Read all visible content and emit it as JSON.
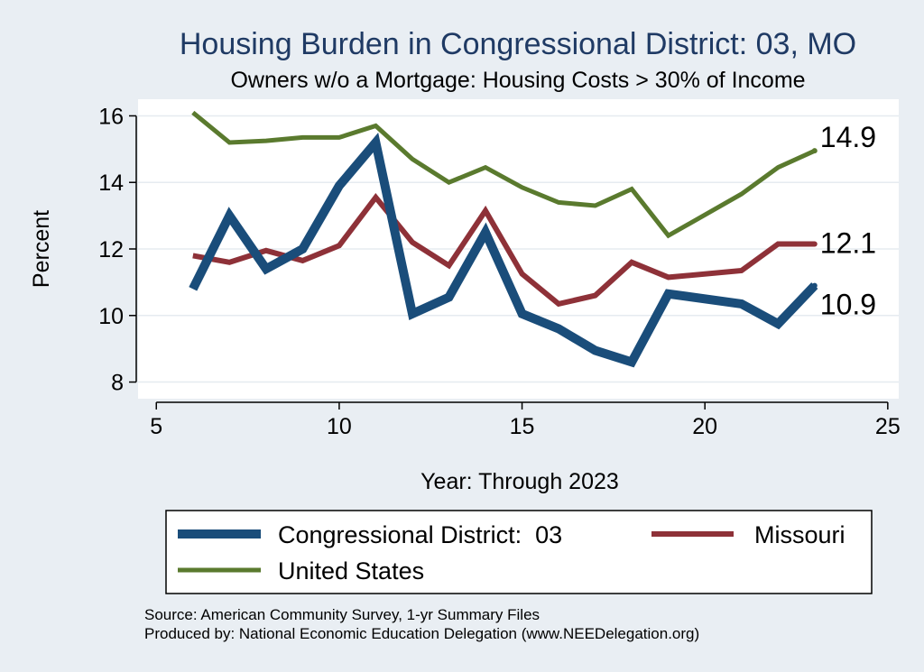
{
  "chart_data": {
    "type": "line",
    "title": "Housing Burden in Congressional District:  03, MO",
    "subtitle": "Owners w/o a Mortgage: Housing Costs > 30% of Income",
    "xlabel": "Year: Through 2023",
    "ylabel": "Percent",
    "xlim": [
      4.5,
      25.3
    ],
    "ylim": [
      7.5,
      16.5
    ],
    "x_ticks": [
      5,
      10,
      15,
      20,
      25
    ],
    "y_ticks": [
      8,
      10,
      12,
      14,
      16
    ],
    "grid": true,
    "legend_position": "bottom",
    "series": [
      {
        "name": "Congressional District:  03",
        "color": "#1a4d7a",
        "x": [
          6,
          7,
          8,
          9,
          10,
          11,
          12,
          13,
          14,
          15,
          16,
          17,
          18,
          19,
          21,
          22,
          23
        ],
        "values": [
          10.8,
          13.0,
          11.4,
          12.0,
          13.9,
          15.2,
          10.05,
          10.55,
          12.5,
          10.05,
          9.6,
          8.95,
          8.6,
          10.65,
          10.35,
          9.75,
          10.9
        ],
        "end_label": "10.9"
      },
      {
        "name": "Missouri",
        "color": "#8e3138",
        "x": [
          6,
          7,
          8,
          9,
          10,
          11,
          12,
          13,
          14,
          15,
          16,
          17,
          18,
          19,
          21,
          22,
          23
        ],
        "values": [
          11.8,
          11.6,
          11.95,
          11.65,
          12.1,
          13.55,
          12.2,
          11.5,
          13.15,
          11.25,
          10.35,
          10.6,
          11.6,
          11.15,
          11.35,
          12.15,
          12.15
        ],
        "end_label": "12.1"
      },
      {
        "name": "United States",
        "color": "#5a7a2e",
        "x": [
          6,
          7,
          8,
          9,
          10,
          11,
          12,
          13,
          14,
          15,
          16,
          17,
          18,
          19,
          21,
          22,
          23
        ],
        "values": [
          16.1,
          15.2,
          15.25,
          15.35,
          15.35,
          15.7,
          14.7,
          14.0,
          14.45,
          13.85,
          13.4,
          13.3,
          13.8,
          12.4,
          13.65,
          14.45,
          14.95
        ],
        "end_label": "14.9"
      }
    ]
  },
  "footer": {
    "source": "Source: American Community Survey, 1-yr Summary Files",
    "producer": "Produced by: National Economic Education Delegation (www.NEEDelegation.org)"
  }
}
